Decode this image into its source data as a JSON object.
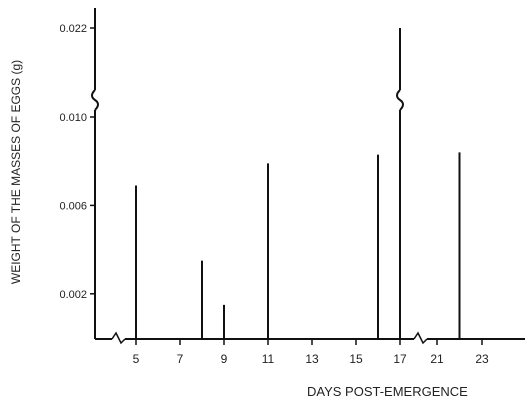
{
  "chart_data": {
    "type": "bar",
    "xlabel": "DAYS  POST-EMERGENCE",
    "ylabel": "WEIGHT OF THE MASSES OF EGGS (g)",
    "x_tick_labels": [
      "5",
      "7",
      "9",
      "11",
      "13",
      "15",
      "17",
      "21",
      "23"
    ],
    "y_tick_labels": [
      "0.002",
      "0.006",
      "0.010",
      "0.022"
    ],
    "axis_breaks": {
      "y": "between 0.010 and 0.022",
      "x": [
        "between 3 and 5",
        "between 17 and 21"
      ]
    },
    "points": [
      {
        "day": 5,
        "weight": 0.0069
      },
      {
        "day": 8,
        "weight": 0.0035
      },
      {
        "day": 9,
        "weight": 0.0015
      },
      {
        "day": 11,
        "weight": 0.0079
      },
      {
        "day": 16,
        "weight": 0.0083
      },
      {
        "day": 17,
        "weight": 0.022
      },
      {
        "day": 22,
        "weight": 0.0084
      }
    ]
  }
}
